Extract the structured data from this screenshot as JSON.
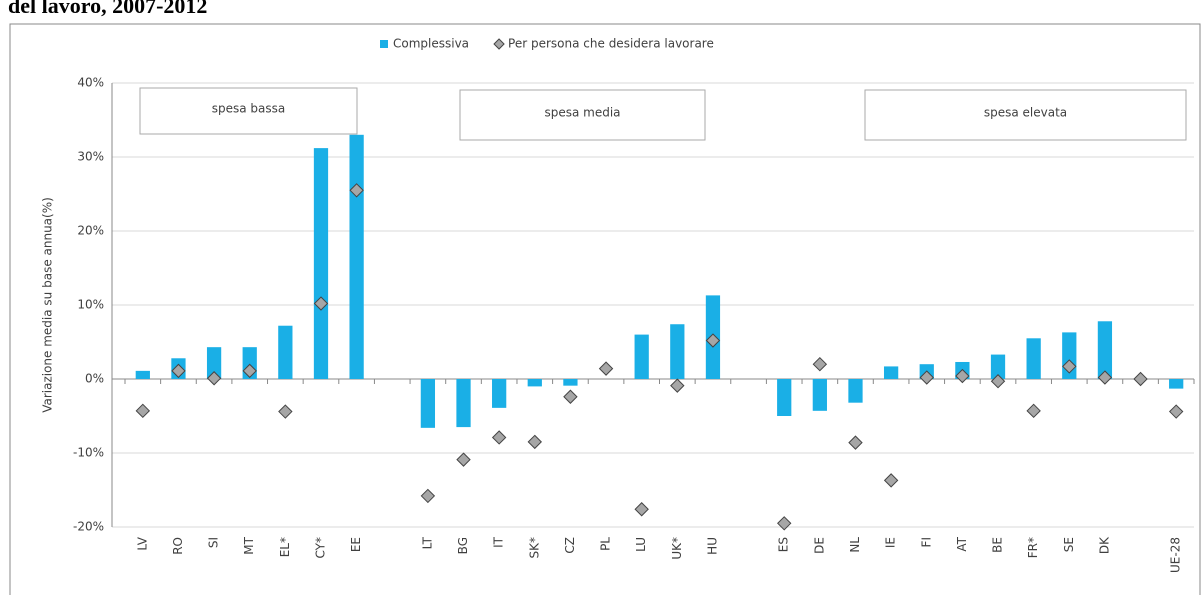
{
  "chart_data": {
    "type": "bar",
    "title": "del lavoro, 2007-2012",
    "y_label": "Variazione media su base annua(%)",
    "categories": [
      "LV",
      "RO",
      "SI",
      "MT",
      "EL*",
      "CY*",
      "EE",
      null,
      "LT",
      "BG",
      "IT",
      "SK*",
      "CZ",
      "PL",
      "LU",
      "UK*",
      "HU",
      null,
      "ES",
      "DE",
      "NL",
      "IE",
      "FI",
      "AT",
      "BE",
      "FR*",
      "SE",
      "DK",
      null,
      "UE-28"
    ],
    "series": [
      {
        "name": "Complessiva",
        "color": "#1aafe6",
        "marker": "square",
        "values": [
          1.1,
          2.8,
          4.3,
          4.3,
          7.2,
          31.2,
          33,
          null,
          -6.6,
          -6.5,
          -3.9,
          -1.0,
          -0.9,
          0,
          6.0,
          7.4,
          11.3,
          null,
          -5.0,
          -4.3,
          -3.2,
          1.7,
          2.0,
          2.3,
          3.3,
          5.5,
          6.3,
          7.8,
          null,
          -1.3
        ]
      },
      {
        "name": "Per persona che desidera lavorare",
        "color": "#a6a6a6",
        "marker": "diamond",
        "values": [
          -4.3,
          1.1,
          0.1,
          1.1,
          -4.4,
          10.2,
          25.5,
          null,
          -15.8,
          -10.9,
          -7.9,
          -8.5,
          -2.4,
          1.4,
          -17.6,
          -0.9,
          5.2,
          null,
          -19.5,
          2.0,
          -8.6,
          -13.7,
          0.2,
          0.4,
          -0.3,
          -4.3,
          1.7,
          0.2,
          0,
          -4.4
        ]
      }
    ],
    "annotations": [
      "spesa bassa",
      "spesa media",
      "spesa elevata"
    ],
    "ylim": [
      -20,
      40
    ],
    "yticks": [
      {
        "value": -20,
        "label": "-20%"
      },
      {
        "value": -10,
        "label": "-10%"
      },
      {
        "value": 0,
        "label": "0%"
      },
      {
        "value": 10,
        "label": "10%"
      },
      {
        "value": 20,
        "label": "20%"
      },
      {
        "value": 30,
        "label": "30%"
      },
      {
        "value": 40,
        "label": "40%"
      }
    ],
    "grid": true,
    "legend": "top"
  }
}
